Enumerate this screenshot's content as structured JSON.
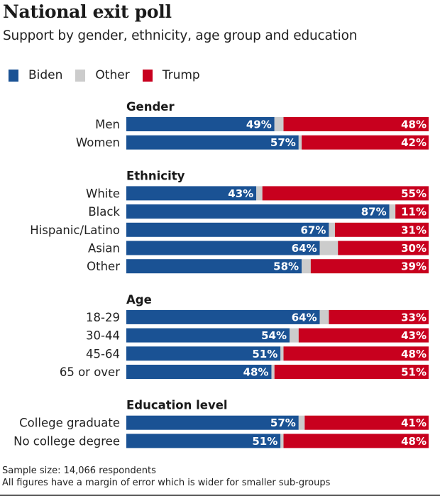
{
  "header": {
    "title": "National exit poll",
    "subtitle": "Support by gender, ethnicity, age group and education"
  },
  "legend": [
    {
      "label": "Biden",
      "color": "#1a5294"
    },
    {
      "label": "Other",
      "color": "#cccccc"
    },
    {
      "label": "Trump",
      "color": "#c8001e"
    }
  ],
  "footer": {
    "line1": "Sample size: 14,066 respondents",
    "line2": "All figures have a margin of error which is wider for smaller sub-groups"
  },
  "chart_data": {
    "type": "bar",
    "stacked": true,
    "orientation": "horizontal",
    "title": "National exit poll",
    "subtitle": "Support by gender, ethnicity, age group and education",
    "xlim": [
      0,
      100
    ],
    "legend_position": "top-left",
    "series_names": [
      "Biden",
      "Other",
      "Trump"
    ],
    "colors": {
      "Biden": "#1a5294",
      "Other": "#cccccc",
      "Trump": "#c8001e"
    },
    "groups": [
      {
        "name": "Gender",
        "rows": [
          {
            "label": "Men",
            "biden": 49,
            "trump": 48
          },
          {
            "label": "Women",
            "biden": 57,
            "trump": 42
          }
        ]
      },
      {
        "name": "Ethnicity",
        "rows": [
          {
            "label": "White",
            "biden": 43,
            "trump": 55
          },
          {
            "label": "Black",
            "biden": 87,
            "trump": 11
          },
          {
            "label": "Hispanic/Latino",
            "biden": 67,
            "trump": 31
          },
          {
            "label": "Asian",
            "biden": 64,
            "trump": 30
          },
          {
            "label": "Other",
            "biden": 58,
            "trump": 39
          }
        ]
      },
      {
        "name": "Age",
        "rows": [
          {
            "label": "18-29",
            "biden": 64,
            "trump": 33
          },
          {
            "label": "30-44",
            "biden": 54,
            "trump": 43
          },
          {
            "label": "45-64",
            "biden": 51,
            "trump": 48
          },
          {
            "label": "65 or over",
            "biden": 48,
            "trump": 51
          }
        ]
      },
      {
        "name": "Education level",
        "rows": [
          {
            "label": "College graduate",
            "biden": 57,
            "trump": 41
          },
          {
            "label": "No college degree",
            "biden": 51,
            "trump": 48
          }
        ]
      }
    ],
    "value_suffix": "%"
  }
}
